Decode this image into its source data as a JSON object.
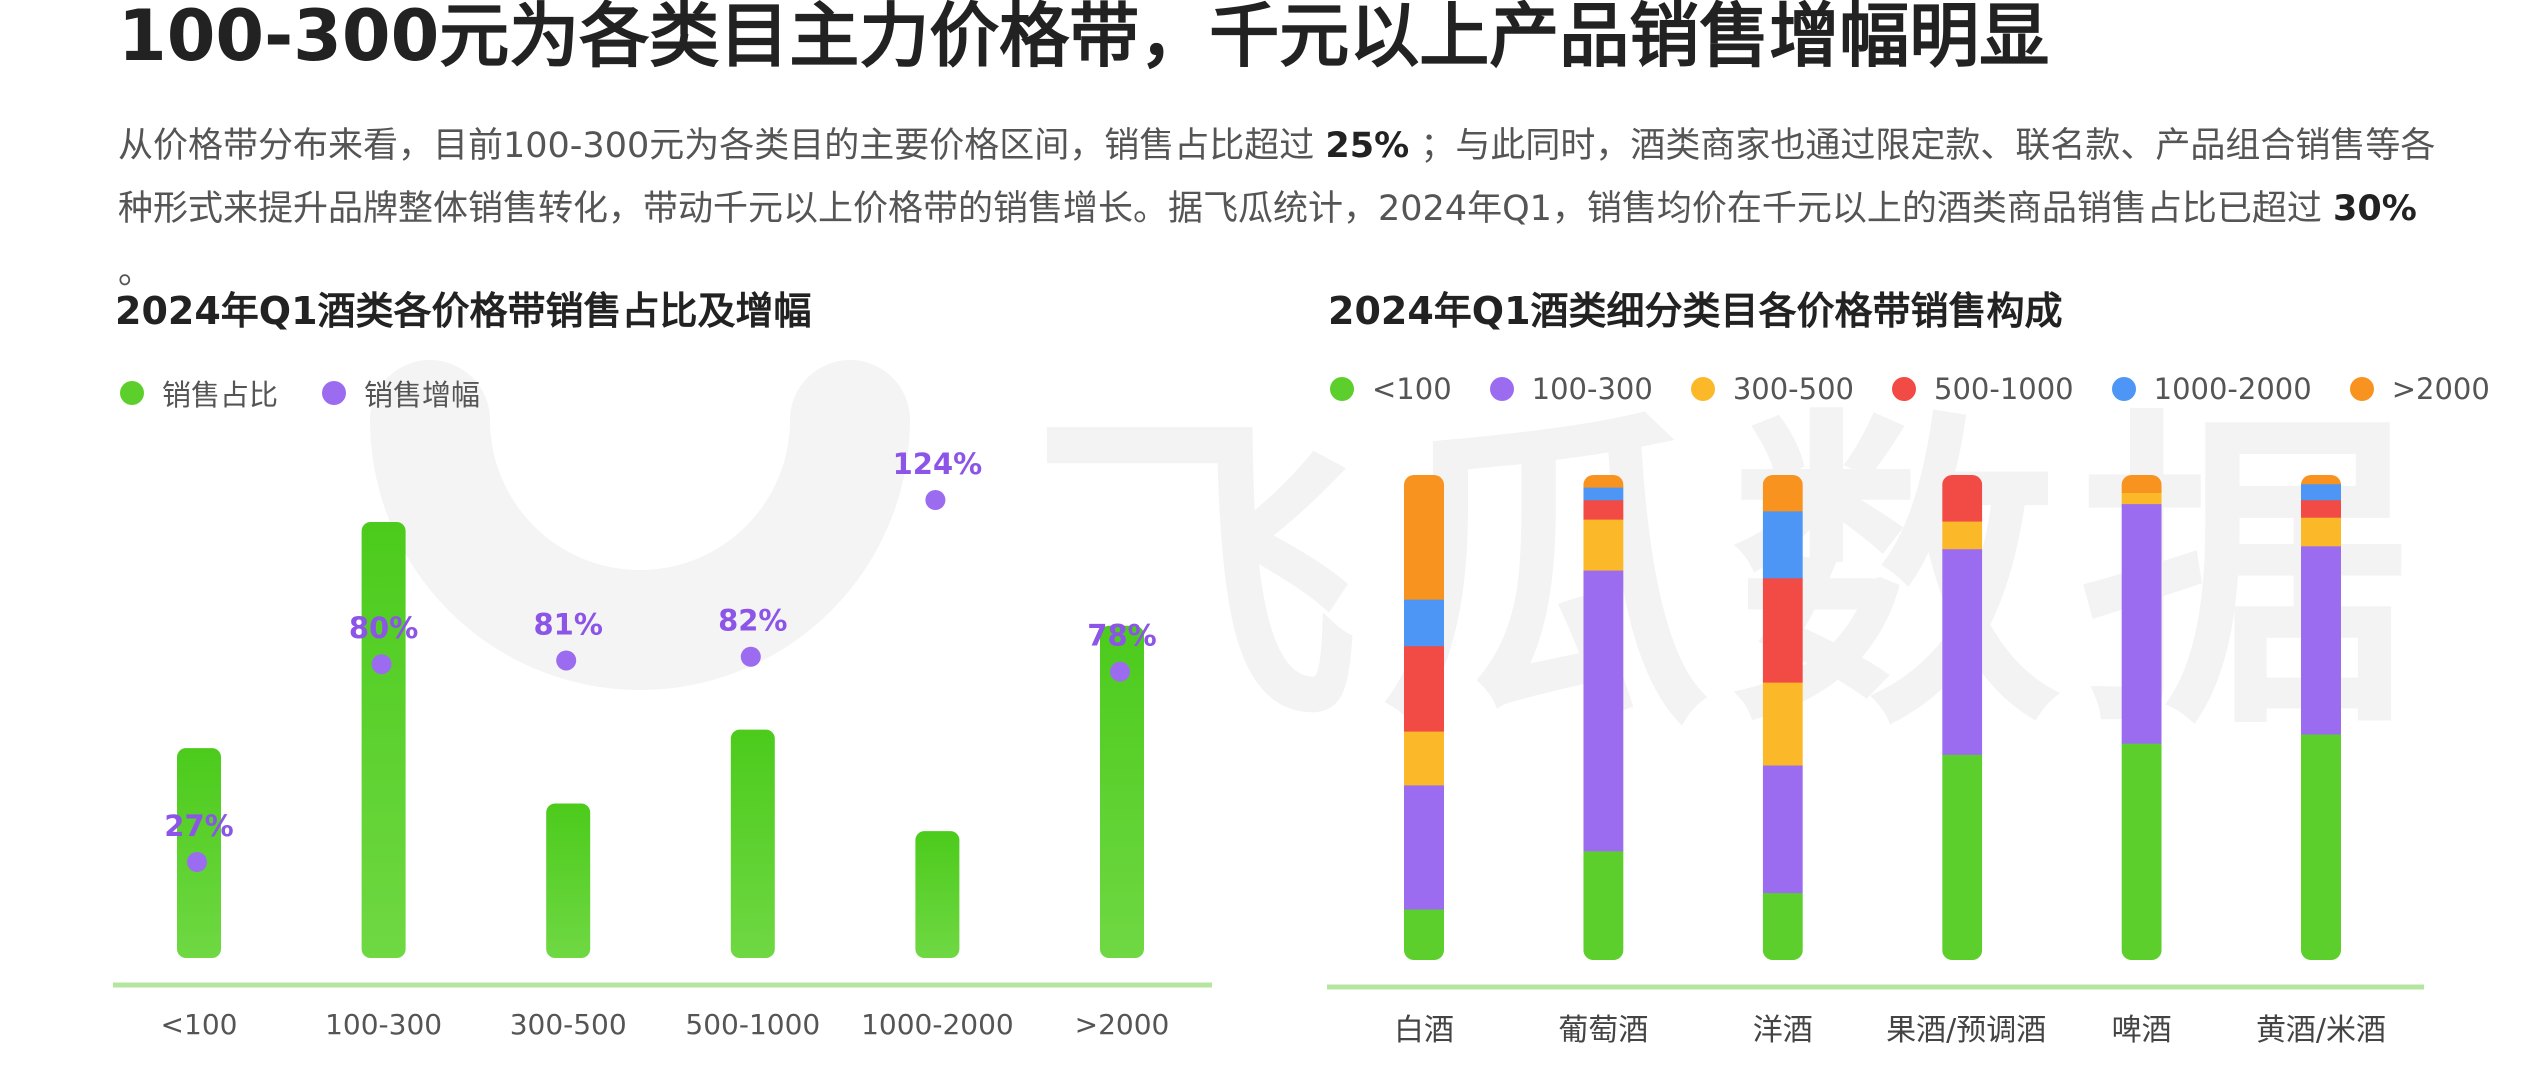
{
  "heading": {
    "title": "100-300元为各类目主力价格带，千元以上产品销售增幅明显"
  },
  "intro": {
    "part1": "从价格带分布来看，目前100-300元为各类目的主要价格区间，销售占比超过",
    "highlight1": "25%",
    "part2": "；与此同时，酒类商家也通过限定款、联名款、产品组合销售等各种形式来提升品牌整体销售转化，带动千元以上价格带的销售增长。据飞瓜统计，2024年Q1，销售均价在千元以上的酒类商品销售占比已超过",
    "highlight2": "30%",
    "part3": "。"
  },
  "watermark": {
    "text": "飞瓜数据"
  },
  "colors": {
    "green": "#5ccf2c",
    "purple": "#9b6cf0",
    "yellow": "#fbb92a",
    "red": "#f24a44",
    "blue": "#4d96f5",
    "orange": "#f7931e",
    "axis": "#b4e6a0"
  },
  "chart_data": [
    {
      "type": "bar",
      "title": "2024年Q1酒类各价格带销售占比及增幅",
      "categories": [
        "<100",
        "100-300",
        "300-500",
        "500-1000",
        "1000-2000",
        ">2000"
      ],
      "series": [
        {
          "name": "销售占比",
          "values": [
            9.1,
            18.9,
            6.7,
            9.9,
            5.5,
            14.4
          ],
          "color": "#5ccf2c",
          "kind": "bar"
        },
        {
          "name": "销售增幅",
          "values": [
            27,
            80,
            81,
            82,
            124,
            78
          ],
          "labels": [
            "27%",
            "80%",
            "81%",
            "82%",
            "124%",
            "78%"
          ],
          "color": "#9b6cf0",
          "kind": "dot"
        }
      ],
      "legend": "top-left",
      "grid": false
    },
    {
      "type": "bar",
      "stacked": true,
      "title": "2024年Q1酒类细分类目各价格带销售构成",
      "categories": [
        "白酒",
        "葡萄酒",
        "洋酒",
        "果酒/预调酒",
        "啤酒",
        "黄酒/米酒"
      ],
      "series": [
        {
          "name": "<100",
          "values": [
            10.5,
            22.5,
            13.9,
            42.4,
            44.7,
            46.6
          ],
          "color": "#5ccf2c"
        },
        {
          "name": "100-300",
          "values": [
            25.6,
            57.9,
            26.3,
            42.4,
            49.4,
            38.8
          ],
          "color": "#9b6cf0"
        },
        {
          "name": "300-500",
          "values": [
            11.1,
            10.5,
            17.1,
            5.7,
            2.3,
            5.9
          ],
          "color": "#fbb92a"
        },
        {
          "name": "500-1000",
          "values": [
            17.6,
            4.0,
            21.5,
            9.5,
            0,
            3.6
          ],
          "color": "#f24a44"
        },
        {
          "name": "1000-2000",
          "values": [
            9.6,
            2.6,
            13.8,
            0,
            0,
            3.3
          ],
          "color": "#4d96f5"
        },
        {
          "name": ">2000",
          "values": [
            25.6,
            2.5,
            7.4,
            0,
            3.6,
            1.8
          ],
          "color": "#f7931e"
        }
      ],
      "ylim": [
        0,
        100
      ],
      "legend": "top-left",
      "grid": false
    }
  ]
}
